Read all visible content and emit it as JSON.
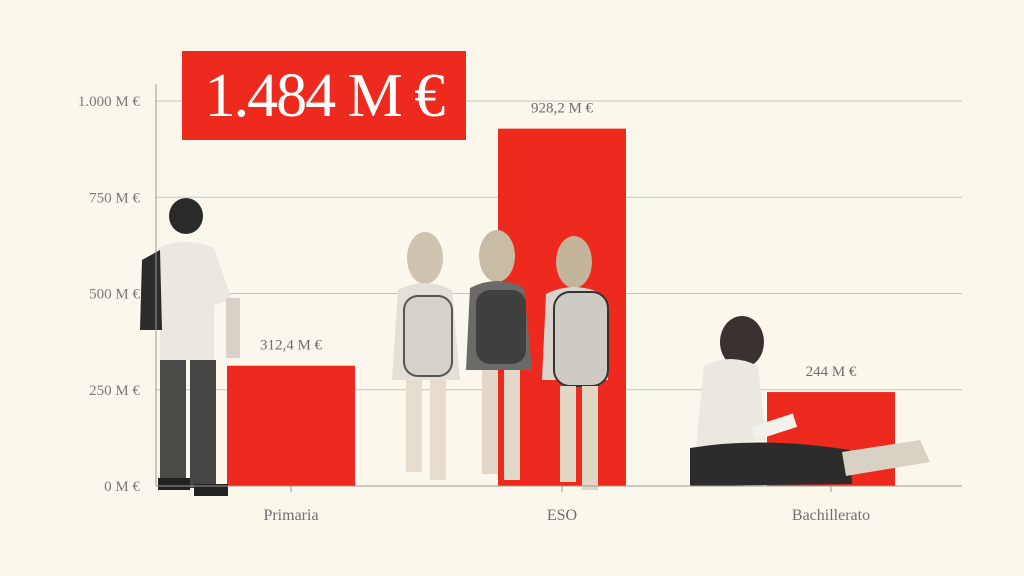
{
  "headline": {
    "total": "1.484 M €"
  },
  "colors": {
    "bar": "#ee2a1e",
    "background": "#fcf7ec",
    "photo_tone": "#3a3a3a"
  },
  "chart_data": {
    "type": "bar",
    "title": "",
    "xlabel": "",
    "ylabel": "",
    "categories": [
      "Primaria",
      "ESO",
      "Bachillerato"
    ],
    "values": [
      312.4,
      928.2,
      244
    ],
    "value_labels": [
      "312,4 M €",
      "928,2 M €",
      "244 M €"
    ],
    "ylim": [
      0,
      1000
    ],
    "yticks": [
      0,
      250,
      500,
      750,
      1000
    ],
    "ytick_labels": [
      "0 M €",
      "250 M €",
      "500 M €",
      "750 M €",
      "1.000 M €"
    ],
    "grid": true,
    "legend": "none"
  },
  "illustrations": [
    {
      "icon": "student-walking-with-phone-icon"
    },
    {
      "icon": "three-girls-with-backpacks-icon"
    },
    {
      "icon": "girl-sitting-writing-icon"
    }
  ]
}
